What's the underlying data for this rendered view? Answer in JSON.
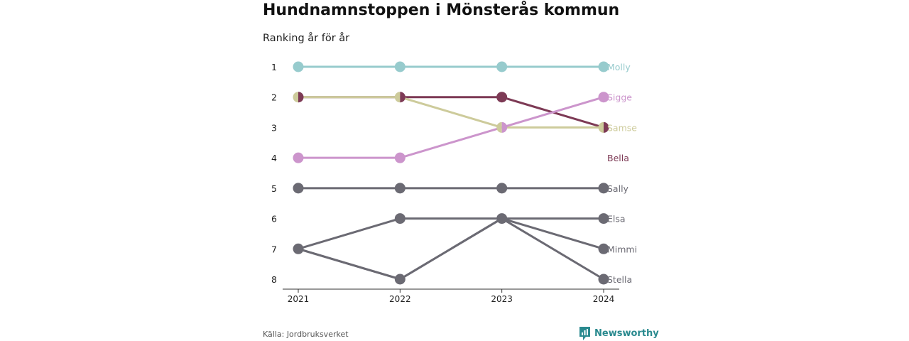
{
  "header": {
    "title": "Hundnamnstoppen i Mönsterås kommun",
    "subtitle": "Ranking år för år"
  },
  "footer": {
    "source": "Källa: Jordbruksverket",
    "brand": "Newsworthy",
    "brand_icon": "newsworthy-logo-icon"
  },
  "colors": {
    "Molly": "#97cbcd",
    "Sigge": "#cc95cc",
    "Samse": "#cdcb9b",
    "Bella": "#7d3a55",
    "other": "#6b6a73",
    "axis": "#333333",
    "brand": "#2a8a8f"
  },
  "chart_data": {
    "type": "line",
    "title": "Hundnamnstoppen i Mönsterås kommun",
    "subtitle": "Ranking år för år",
    "x": [
      "2021",
      "2022",
      "2023",
      "2024"
    ],
    "y_ticks": [
      1,
      2,
      3,
      4,
      5,
      6,
      7,
      8
    ],
    "y_reversed": true,
    "ylim": [
      1,
      8
    ],
    "grid": false,
    "series": [
      {
        "name": "Molly",
        "values": [
          1,
          1,
          1,
          1
        ]
      },
      {
        "name": "Sigge",
        "values": [
          4,
          4,
          3,
          2
        ]
      },
      {
        "name": "Samse",
        "values": [
          2,
          2,
          3,
          3
        ]
      },
      {
        "name": "Bella",
        "values": [
          2,
          2,
          2,
          3
        ]
      },
      {
        "name": "Sally",
        "values": [
          5,
          5,
          5,
          5
        ]
      },
      {
        "name": "Elsa",
        "values": [
          7,
          6,
          6,
          6
        ]
      },
      {
        "name": "Mimmi",
        "values": [
          7,
          8,
          6,
          7
        ]
      },
      {
        "name": "Stella",
        "values": [
          7,
          8,
          6,
          8
        ]
      }
    ]
  }
}
